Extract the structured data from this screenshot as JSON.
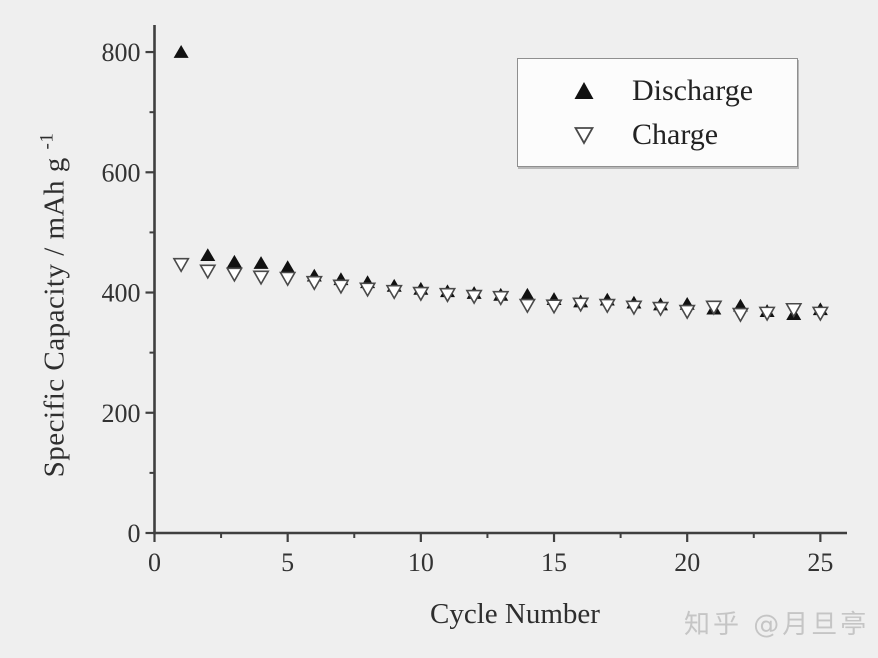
{
  "page": {
    "background": "#efefef"
  },
  "colors": {
    "axis": "#3f3f3f",
    "tick_label": "#333333",
    "legend_border": "#8f8f8f",
    "legend_background": "#fcfcfc",
    "marker_filled": "#111111",
    "marker_open_stroke": "#4a4a4a",
    "marker_open_fill": "#ffffff",
    "watermark": "#c5c5c5"
  },
  "watermark": {
    "text": "知乎 @月旦亭"
  },
  "chart_data": {
    "type": "scatter",
    "title": "",
    "xlabel": "Cycle Number",
    "ylabel": "Specific Capacity / mAh g",
    "ylabel_superscript": "-1",
    "grid": false,
    "x_axis": {
      "min": 0,
      "max": 26,
      "major_ticks": [
        0,
        5,
        10,
        15,
        20,
        25
      ],
      "minor_ticks": [
        2.5,
        7.5,
        12.5,
        17.5,
        22.5
      ]
    },
    "y_axis": {
      "min": 0,
      "max": 845,
      "major_ticks": [
        0,
        200,
        400,
        600,
        800
      ],
      "minor_ticks": [
        100,
        300,
        500,
        700
      ]
    },
    "legend": {
      "position": "top-right",
      "entries": [
        {
          "label": "Discharge",
          "marker": "filled-up-triangle"
        },
        {
          "label": "Charge",
          "marker": "open-down-triangle"
        }
      ]
    },
    "x": [
      1,
      2,
      3,
      4,
      5,
      6,
      7,
      8,
      9,
      10,
      11,
      12,
      13,
      14,
      15,
      16,
      17,
      18,
      19,
      20,
      21,
      22,
      23,
      24,
      25
    ],
    "series": [
      {
        "name": "Discharge",
        "marker": "triangle-up-filled",
        "values": [
          800,
          462,
          451,
          449,
          442,
          428,
          422,
          417,
          411,
          406,
          402,
          399,
          396,
          396,
          389,
          385,
          388,
          383,
          380,
          381,
          373,
          378,
          369,
          364,
          372
        ]
      },
      {
        "name": "Charge",
        "marker": "triangle-down-open",
        "values": [
          447,
          436,
          431,
          426,
          424,
          417,
          411,
          406,
          402,
          399,
          397,
          394,
          392,
          379,
          378,
          381,
          379,
          376,
          374,
          369,
          376,
          364,
          366,
          372,
          366
        ]
      }
    ]
  }
}
